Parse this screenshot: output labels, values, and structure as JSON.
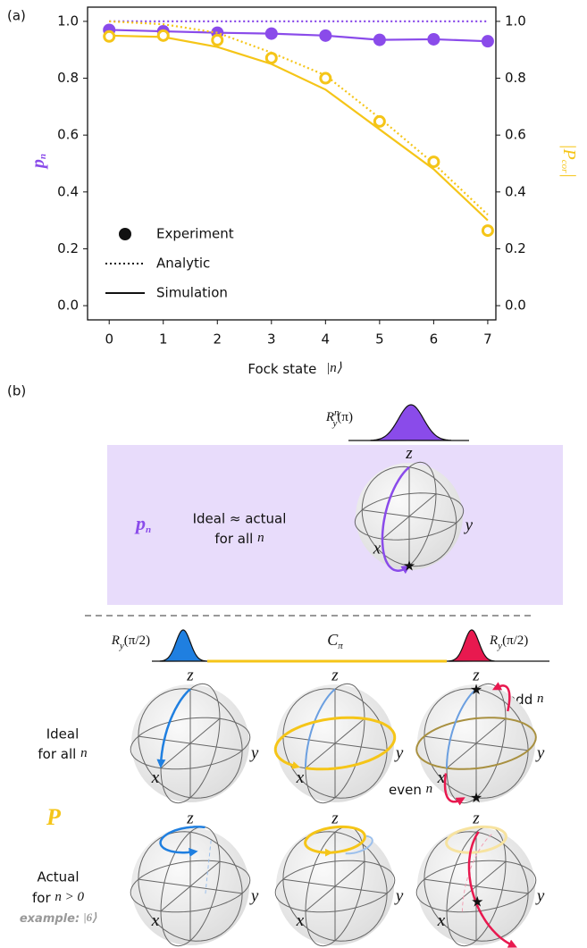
{
  "chart_data": {
    "type": "line",
    "panel_label": "(a)",
    "x_label": "Fock state",
    "x_label_math": "|n⟩",
    "y_label": {
      "text": "p",
      "sub": "n"
    },
    "y2_label": {
      "text": "|P",
      "sub": "cor",
      "end": "|"
    },
    "x": [
      0,
      1,
      2,
      3,
      4,
      5,
      6,
      7
    ],
    "xlim": [
      -0.4,
      7.15
    ],
    "xticks": [
      0,
      1,
      2,
      3,
      4,
      5,
      6,
      7
    ],
    "ylim": [
      -0.05,
      1.05
    ],
    "yticks": [
      {
        "value": 0,
        "label": "0.0"
      },
      0.2,
      0.4,
      0.6,
      0.8,
      {
        "value": 1,
        "label": "1.0"
      }
    ],
    "y2lim": [
      -0.05,
      1.05
    ],
    "y2ticks": [
      {
        "value": 0,
        "label": "0.0"
      },
      0.2,
      0.4,
      0.6,
      0.8,
      {
        "value": 1,
        "label": "1.0"
      }
    ],
    "series": [
      {
        "style": "dotted",
        "color": "#8a4bea",
        "values": [
          1,
          1,
          1,
          1,
          1,
          1,
          1,
          1
        ]
      },
      {
        "style": "solid",
        "color": "#8a4bea",
        "values": [
          0.97,
          0.965,
          0.96,
          0.957,
          0.95,
          0.935,
          0.937,
          0.93
        ]
      },
      {
        "style": "marker",
        "color": "#8a4bea",
        "values": [
          0.97,
          0.965,
          0.96,
          0.957,
          0.95,
          0.935,
          0.937,
          0.93
        ]
      },
      {
        "style": "dotted",
        "color": "#f5c518",
        "axis": "y2",
        "values": [
          1.0,
          0.99,
          0.96,
          0.89,
          0.81,
          0.66,
          0.5,
          0.32
        ]
      },
      {
        "style": "solid",
        "color": "#f5c518",
        "axis": "y2",
        "values": [
          0.95,
          0.945,
          0.91,
          0.85,
          0.76,
          0.62,
          0.48,
          0.3
        ]
      },
      {
        "style": "marker",
        "color": "#f5c518",
        "axis": "y2",
        "values": [
          0.947,
          0.95,
          0.934,
          0.871,
          0.8,
          0.648,
          0.506,
          0.264
        ]
      }
    ],
    "legend": [
      {
        "label": "Experiment",
        "style": "marker"
      },
      {
        "label": "Analytic",
        "style": "dotted"
      },
      {
        "label": "Simulation",
        "style": "solid"
      }
    ]
  },
  "diagram": {
    "panel_label": "(b)",
    "pulse_top": {
      "base": "R",
      "sub": "y",
      "sup": "n",
      "arg": "(π)"
    },
    "box_symbol": {
      "text": "p",
      "sub": "n"
    },
    "box_text": {
      "line1": "Ideal ≈ actual",
      "line2": "for all",
      "var": "n"
    },
    "pulse_left": {
      "base": "R",
      "sub": "y",
      "arg": "(π/2)"
    },
    "pulse_mid": {
      "base": "C",
      "sub": "π"
    },
    "pulse_right": {
      "base": "R",
      "sub": "y",
      "arg": "(π/2)"
    },
    "ideal": {
      "line1": "Ideal",
      "line2": "for all",
      "var": "n"
    },
    "odd": {
      "text": "odd",
      "var": "n"
    },
    "even": {
      "text": "even",
      "var": "n"
    },
    "symbol_P": "P",
    "actual": {
      "line1": "Actual",
      "line2": "for",
      "math": "n > 0"
    },
    "example": {
      "text": "example:",
      "math": "|6⟩"
    },
    "axes": {
      "x": "x",
      "y": "y",
      "z": "z"
    }
  }
}
